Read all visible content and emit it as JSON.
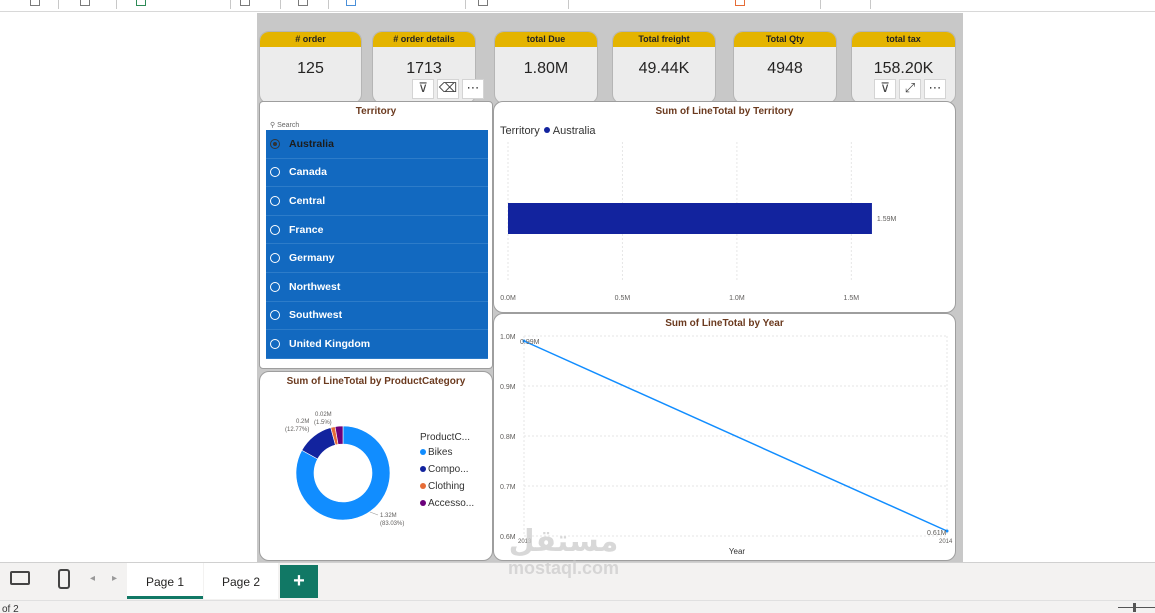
{
  "kpis": [
    {
      "label": "# order",
      "value": "125"
    },
    {
      "label": "# order details",
      "value": "1713"
    },
    {
      "label": "total Due",
      "value": "1.80M"
    },
    {
      "label": "Total freight",
      "value": "49.44K"
    },
    {
      "label": "Total Qty",
      "value": "4948"
    },
    {
      "label": "total tax",
      "value": "158.20K"
    }
  ],
  "visual_header": {
    "filter_icon": "filter-icon",
    "eraser_icon": "eraser-icon",
    "more_icon": "more-options-icon",
    "focus_icon": "focus-mode-icon"
  },
  "slicer": {
    "title": "Territory",
    "search_placeholder": "Search",
    "selected": "Australia",
    "items": [
      "Australia",
      "Canada",
      "Central",
      "France",
      "Germany",
      "Northwest",
      "Southwest",
      "United Kingdom"
    ]
  },
  "bar_chart": {
    "title": "Sum of LineTotal by Territory",
    "legend_title": "Territory",
    "legend_item": "Australia",
    "data_label": "1.59M",
    "x_ticks": [
      "0.0M",
      "0.5M",
      "1.0M",
      "1.5M"
    ]
  },
  "line_chart": {
    "title": "Sum of LineTotal by Year",
    "xlabel": "Year",
    "y_ticks": [
      "1.0M",
      "0.9M",
      "0.8M",
      "0.7M",
      "0.6M"
    ],
    "x_ticks": [
      "2013",
      "2014"
    ],
    "point_labels": [
      "0.99M",
      "0.61M"
    ]
  },
  "donut_chart": {
    "title": "Sum of LineTotal by ProductCategory",
    "legend_title": "ProductC...",
    "legend_items": [
      "Bikes",
      "Compo...",
      "Clothing",
      "Accesso..."
    ],
    "labels": {
      "bikes_value": "1.32M",
      "bikes_pct": "(83.03%)",
      "components_value": "0.2M",
      "components_pct": "(12.77%)",
      "clothing_value": "0.02M",
      "clothing_pct": "(1.5%)"
    }
  },
  "colors": {
    "bikes": "#118dff",
    "components": "#12239e",
    "clothing": "#e66c37",
    "accessories": "#6b007b",
    "bar": "#12239e",
    "line": "#118dff",
    "kpi_header": "#e4b400",
    "slicer_bg": "#1269c0",
    "tab_accent": "#117865"
  },
  "chart_data": [
    {
      "type": "bar",
      "title": "Sum of LineTotal by Territory",
      "categories": [
        "Australia"
      ],
      "series": [
        {
          "name": "Australia",
          "values": [
            1.59
          ]
        }
      ],
      "xlim": [
        0,
        1.8
      ],
      "units": "M",
      "legend": "top-left",
      "grid": true
    },
    {
      "type": "line",
      "title": "Sum of LineTotal by Year",
      "xlabel": "Year",
      "x": [
        2013,
        2014
      ],
      "values": [
        0.99,
        0.61
      ],
      "ylim": [
        0.6,
        1.0
      ],
      "units": "M",
      "grid": true
    },
    {
      "type": "pie",
      "title": "Sum of LineTotal by ProductCategory",
      "categories": [
        "Bikes",
        "Compo...",
        "Clothing",
        "Accesso..."
      ],
      "values": [
        83.03,
        12.77,
        1.5,
        2.7
      ],
      "legend": "right"
    }
  ],
  "pages": {
    "tab1": "Page 1",
    "tab2": "Page 2",
    "add": "+"
  },
  "status": {
    "page_indicator": "of 2"
  },
  "watermark": {
    "arabic": "مستقل",
    "latin": "mostaql.com"
  }
}
